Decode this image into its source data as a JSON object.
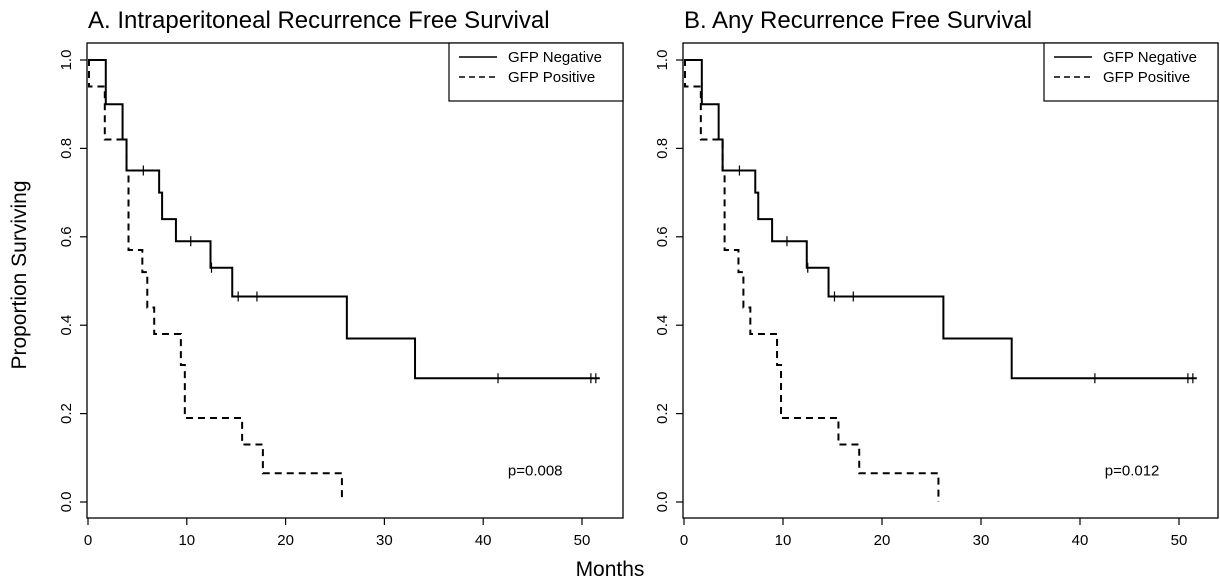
{
  "figure": {
    "ylabel": "Proportion Surviving",
    "xlabel": "Months"
  },
  "chart_data": [
    {
      "type": "line",
      "title": "A. Intraperitoneal Recurrence Free Survival",
      "xlim": [
        0,
        52
      ],
      "ylim": [
        0,
        1
      ],
      "xticks": [
        "0",
        "10",
        "20",
        "30",
        "40",
        "50"
      ],
      "yticks": [
        "0.0",
        "0.2",
        "0.4",
        "0.6",
        "0.8",
        "1.0"
      ],
      "legend_position": "top-right",
      "annotation": "p=0.008",
      "series": [
        {
          "name": "GFP Negative",
          "style": "solid",
          "steps": [
            [
              0,
              1.0
            ],
            [
              1.8,
              0.9
            ],
            [
              3.5,
              0.82
            ],
            [
              3.9,
              0.75
            ],
            [
              7.2,
              0.7
            ],
            [
              7.5,
              0.64
            ],
            [
              8.9,
              0.59
            ],
            [
              12.4,
              0.53
            ],
            [
              14.6,
              0.465
            ],
            [
              26.2,
              0.37
            ],
            [
              33.1,
              0.28
            ],
            [
              51.8,
              0.28
            ]
          ],
          "censored": [
            [
              5.6,
              0.75
            ],
            [
              10.4,
              0.59
            ],
            [
              12.5,
              0.53
            ],
            [
              15.2,
              0.465
            ],
            [
              17.1,
              0.465
            ],
            [
              41.5,
              0.28
            ],
            [
              50.9,
              0.28
            ],
            [
              51.4,
              0.28
            ]
          ]
        },
        {
          "name": "GFP Positive",
          "style": "dashed",
          "steps": [
            [
              0,
              1.0
            ],
            [
              0.1,
              0.94
            ],
            [
              1.7,
              0.82
            ],
            [
              3.9,
              0.75
            ],
            [
              4.1,
              0.57
            ],
            [
              5.5,
              0.52
            ],
            [
              6.0,
              0.44
            ],
            [
              6.7,
              0.38
            ],
            [
              9.4,
              0.31
            ],
            [
              9.8,
              0.19
            ],
            [
              15.6,
              0.13
            ],
            [
              17.7,
              0.065
            ],
            [
              25.7,
              0.0
            ]
          ],
          "censored": []
        }
      ]
    },
    {
      "type": "line",
      "title": "B. Any Recurrence Free Survival",
      "xlim": [
        0,
        52
      ],
      "ylim": [
        0,
        1
      ],
      "xticks": [
        "0",
        "10",
        "20",
        "30",
        "40",
        "50"
      ],
      "yticks": [
        "0.0",
        "0.2",
        "0.4",
        "0.6",
        "0.8",
        "1.0"
      ],
      "legend_position": "top-right",
      "annotation": "p=0.012",
      "series": [
        {
          "name": "GFP Negative",
          "style": "solid",
          "steps": [
            [
              0,
              1.0
            ],
            [
              1.8,
              0.9
            ],
            [
              3.5,
              0.82
            ],
            [
              3.9,
              0.75
            ],
            [
              7.2,
              0.7
            ],
            [
              7.5,
              0.64
            ],
            [
              8.9,
              0.59
            ],
            [
              12.4,
              0.53
            ],
            [
              14.6,
              0.465
            ],
            [
              26.2,
              0.37
            ],
            [
              33.1,
              0.28
            ],
            [
              51.8,
              0.28
            ]
          ],
          "censored": [
            [
              5.6,
              0.75
            ],
            [
              10.4,
              0.59
            ],
            [
              12.5,
              0.53
            ],
            [
              15.2,
              0.465
            ],
            [
              17.1,
              0.465
            ],
            [
              41.5,
              0.28
            ],
            [
              50.9,
              0.28
            ],
            [
              51.4,
              0.28
            ]
          ]
        },
        {
          "name": "GFP Positive",
          "style": "dashed",
          "steps": [
            [
              0,
              1.0
            ],
            [
              0.1,
              0.94
            ],
            [
              1.7,
              0.82
            ],
            [
              3.9,
              0.75
            ],
            [
              4.1,
              0.57
            ],
            [
              5.5,
              0.52
            ],
            [
              6.0,
              0.44
            ],
            [
              6.7,
              0.38
            ],
            [
              9.4,
              0.31
            ],
            [
              9.8,
              0.19
            ],
            [
              15.6,
              0.13
            ],
            [
              17.7,
              0.065
            ],
            [
              25.7,
              0.0
            ]
          ],
          "censored": []
        }
      ]
    }
  ]
}
